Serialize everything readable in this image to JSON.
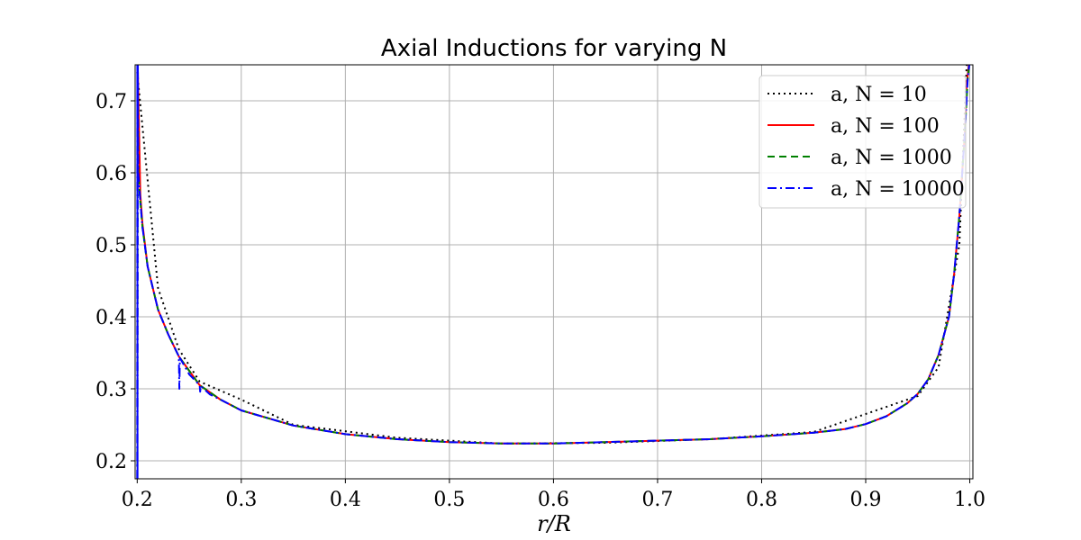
{
  "chart_data": {
    "type": "line",
    "title": "Axial Inductions for varying N",
    "xlabel": "r/R",
    "ylabel": "",
    "xlim": [
      0.198,
      1.003
    ],
    "ylim": [
      0.175,
      0.75
    ],
    "grid": true,
    "legend_position": "top-right",
    "xticks": [
      {
        "value": 0.2,
        "label": "0.2"
      },
      {
        "value": 0.3,
        "label": "0.3"
      },
      {
        "value": 0.4,
        "label": "0.4"
      },
      {
        "value": 0.5,
        "label": "0.5"
      },
      {
        "value": 0.6,
        "label": "0.6"
      },
      {
        "value": 0.7,
        "label": "0.7"
      },
      {
        "value": 0.8,
        "label": "0.8"
      },
      {
        "value": 0.9,
        "label": "0.9"
      },
      {
        "value": 1.0,
        "label": "1.0"
      }
    ],
    "yticks": [
      {
        "value": 0.2,
        "label": "0.2"
      },
      {
        "value": 0.3,
        "label": "0.3"
      },
      {
        "value": 0.4,
        "label": "0.4"
      },
      {
        "value": 0.5,
        "label": "0.5"
      },
      {
        "value": 0.6,
        "label": "0.6"
      },
      {
        "value": 0.7,
        "label": "0.7"
      }
    ],
    "series": [
      {
        "name": "a, N = 10",
        "color": "#000000",
        "dash": "2,4",
        "x": [
          0.2,
          0.22,
          0.24,
          0.26,
          0.3,
          0.35,
          0.45,
          0.55,
          0.65,
          0.75,
          0.85,
          0.95,
          0.97,
          0.99,
          0.997
        ],
        "y": [
          0.74,
          0.44,
          0.355,
          0.31,
          0.285,
          0.25,
          0.232,
          0.224,
          0.225,
          0.23,
          0.24,
          0.29,
          0.33,
          0.5,
          0.75
        ]
      },
      {
        "name": "a, N = 100",
        "color": "#ff0000",
        "dash": "",
        "x": [
          0.2005,
          0.203,
          0.205,
          0.21,
          0.22,
          0.23,
          0.24,
          0.26,
          0.28,
          0.3,
          0.35,
          0.4,
          0.45,
          0.5,
          0.55,
          0.6,
          0.65,
          0.7,
          0.75,
          0.8,
          0.85,
          0.88,
          0.9,
          0.92,
          0.94,
          0.95,
          0.96,
          0.97,
          0.98,
          0.985,
          0.99,
          0.995,
          0.997,
          0.999
        ],
        "y": [
          0.75,
          0.57,
          0.53,
          0.47,
          0.41,
          0.375,
          0.345,
          0.305,
          0.285,
          0.27,
          0.249,
          0.237,
          0.23,
          0.226,
          0.224,
          0.224,
          0.226,
          0.228,
          0.23,
          0.234,
          0.239,
          0.244,
          0.251,
          0.262,
          0.28,
          0.293,
          0.313,
          0.347,
          0.4,
          0.46,
          0.54,
          0.65,
          0.72,
          0.75
        ]
      },
      {
        "name": "a, N = 1000",
        "color": "#008000",
        "dash": "8,5",
        "x": [
          0.2001,
          0.2006,
          0.201,
          0.203,
          0.205,
          0.21,
          0.22,
          0.23,
          0.24,
          0.26,
          0.28,
          0.3,
          0.35,
          0.4,
          0.45,
          0.5,
          0.55,
          0.6,
          0.65,
          0.7,
          0.75,
          0.8,
          0.85,
          0.88,
          0.9,
          0.92,
          0.94,
          0.95,
          0.96,
          0.97,
          0.98,
          0.985,
          0.99,
          0.995,
          0.998,
          0.9995
        ],
        "y": [
          0.175,
          0.75,
          0.6,
          0.56,
          0.525,
          0.47,
          0.41,
          0.375,
          0.345,
          0.305,
          0.285,
          0.27,
          0.249,
          0.237,
          0.23,
          0.226,
          0.224,
          0.224,
          0.226,
          0.228,
          0.23,
          0.234,
          0.239,
          0.244,
          0.251,
          0.262,
          0.28,
          0.293,
          0.313,
          0.347,
          0.4,
          0.46,
          0.54,
          0.65,
          0.73,
          0.75
        ]
      },
      {
        "name": "a, N = 10000",
        "color": "#0000ff",
        "dash": "10,4,2,4",
        "x": [
          0.2,
          0.2001,
          0.2003,
          0.2006,
          0.201,
          0.203,
          0.205,
          0.21,
          0.22,
          0.23,
          0.24,
          0.2405,
          0.241,
          0.25,
          0.26,
          0.2605,
          0.261,
          0.27,
          0.28,
          0.3,
          0.35,
          0.4,
          0.45,
          0.5,
          0.55,
          0.6,
          0.65,
          0.7,
          0.75,
          0.8,
          0.85,
          0.88,
          0.9,
          0.92,
          0.94,
          0.95,
          0.96,
          0.97,
          0.98,
          0.985,
          0.99,
          0.995,
          0.998,
          0.9995
        ],
        "y": [
          0.175,
          0.75,
          0.175,
          0.75,
          0.6,
          0.56,
          0.525,
          0.47,
          0.41,
          0.375,
          0.345,
          0.3,
          0.343,
          0.32,
          0.305,
          0.296,
          0.304,
          0.292,
          0.285,
          0.27,
          0.249,
          0.237,
          0.23,
          0.226,
          0.224,
          0.224,
          0.226,
          0.228,
          0.23,
          0.234,
          0.239,
          0.244,
          0.251,
          0.262,
          0.28,
          0.293,
          0.313,
          0.347,
          0.4,
          0.46,
          0.54,
          0.65,
          0.73,
          0.75
        ]
      }
    ]
  }
}
